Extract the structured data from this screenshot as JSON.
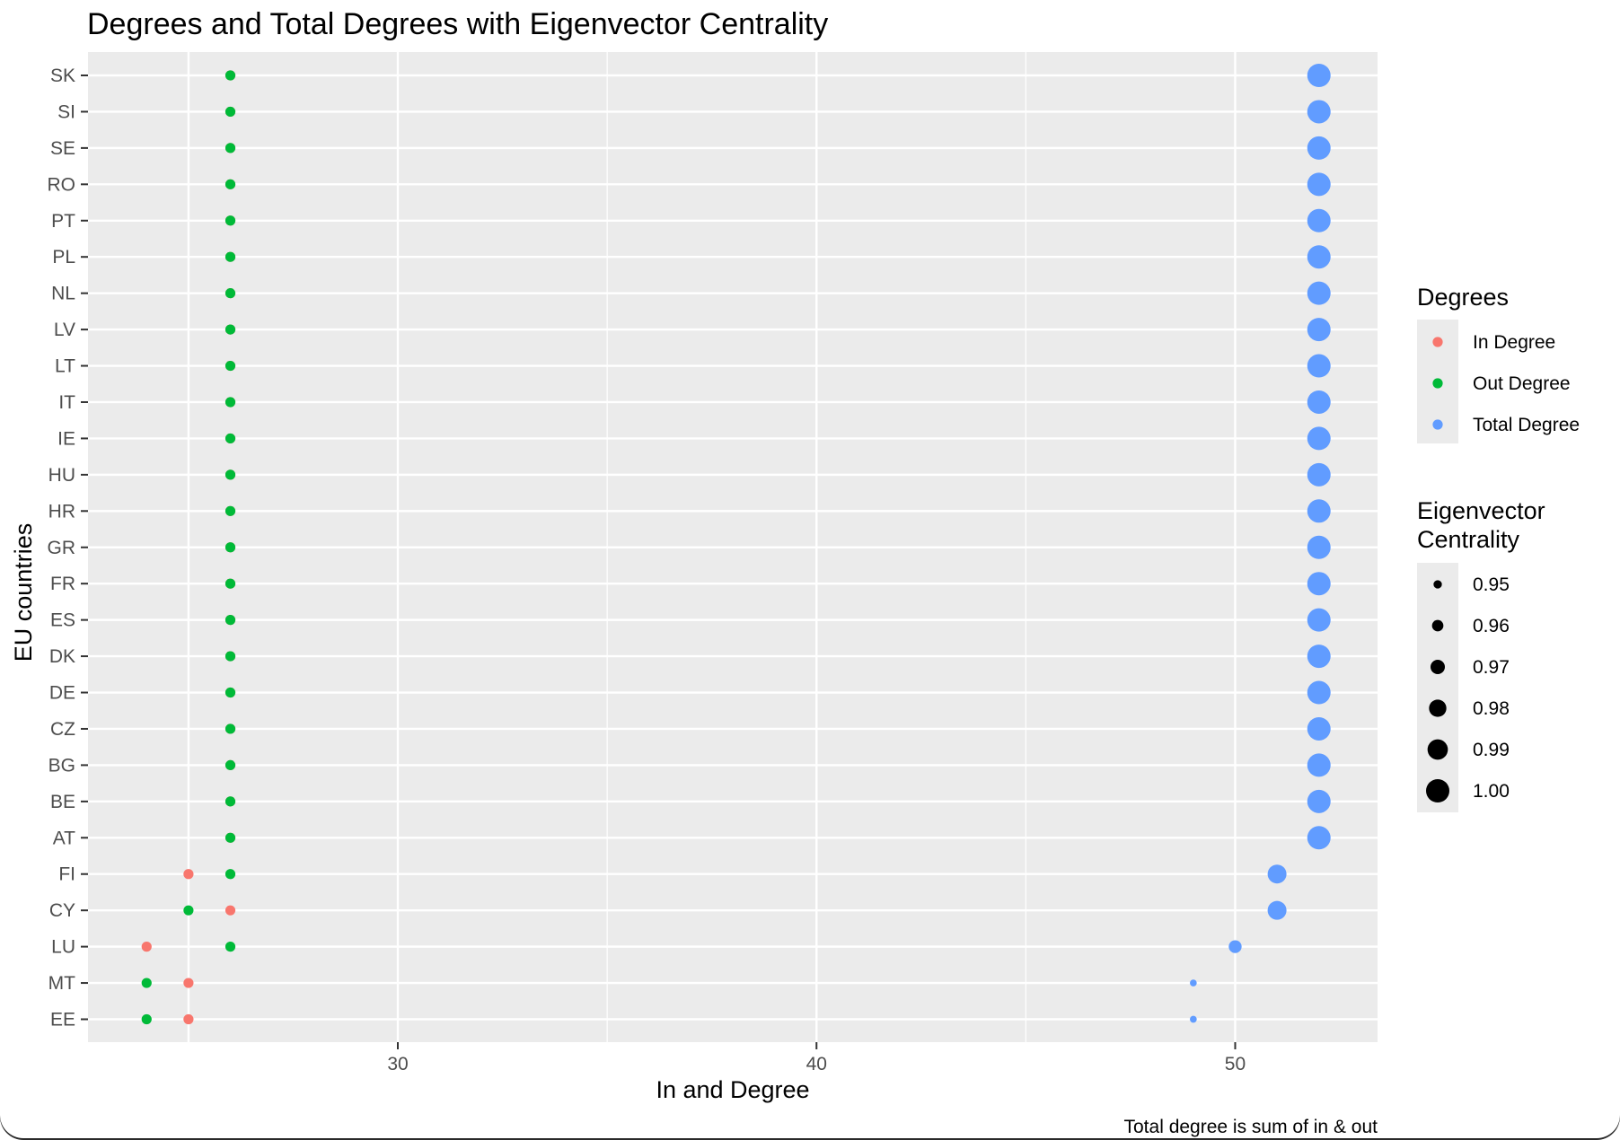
{
  "chart_data": {
    "type": "scatter",
    "title": "Degrees and Total Degrees with Eigenvector Centrality",
    "xlabel": "In and Degree",
    "ylabel": "EU countries",
    "caption": "Total degree is sum of in & out",
    "xlim": [
      22.6,
      53.4
    ],
    "x_ticks": [
      30,
      40,
      50
    ],
    "grid": true,
    "legend_position": "right",
    "categories": [
      "EE",
      "MT",
      "LU",
      "CY",
      "FI",
      "AT",
      "BE",
      "BG",
      "CZ",
      "DE",
      "DK",
      "ES",
      "FR",
      "GR",
      "HR",
      "HU",
      "IE",
      "IT",
      "LT",
      "LV",
      "NL",
      "PL",
      "PT",
      "RO",
      "SE",
      "SI",
      "SK"
    ],
    "series": [
      {
        "name": "In Degree",
        "color": "#F8766D",
        "values": [
          25,
          25,
          24,
          26,
          25,
          26,
          26,
          26,
          26,
          26,
          26,
          26,
          26,
          26,
          26,
          26,
          26,
          26,
          26,
          26,
          26,
          26,
          26,
          26,
          26,
          26,
          26
        ]
      },
      {
        "name": "Out Degree",
        "color": "#00BA38",
        "values": [
          24,
          24,
          26,
          25,
          26,
          26,
          26,
          26,
          26,
          26,
          26,
          26,
          26,
          26,
          26,
          26,
          26,
          26,
          26,
          26,
          26,
          26,
          26,
          26,
          26,
          26,
          26
        ]
      },
      {
        "name": "Total Degree",
        "color": "#619CFF",
        "values": [
          49,
          49,
          50,
          51,
          51,
          52,
          52,
          52,
          52,
          52,
          52,
          52,
          52,
          52,
          52,
          52,
          52,
          52,
          52,
          52,
          52,
          52,
          52,
          52,
          52,
          52,
          52
        ]
      }
    ],
    "eigenvector_centrality": [
      0.945,
      0.945,
      0.965,
      0.985,
      0.985,
      1.0,
      1.0,
      1.0,
      1.0,
      1.0,
      1.0,
      1.0,
      1.0,
      1.0,
      1.0,
      1.0,
      1.0,
      1.0,
      1.0,
      1.0,
      1.0,
      1.0,
      1.0,
      1.0,
      1.0,
      1.0,
      1.0
    ],
    "legends": {
      "color": {
        "title": "Degrees",
        "labels": [
          "In Degree",
          "Out Degree",
          "Total Degree"
        ]
      },
      "size": {
        "title_lines": [
          "Eigenvector",
          "Centrality"
        ],
        "labels": [
          "0.95",
          "0.96",
          "0.97",
          "0.98",
          "0.99",
          "1.00"
        ],
        "values": [
          0.95,
          0.96,
          0.97,
          0.98,
          0.99,
          1.0
        ]
      }
    }
  }
}
